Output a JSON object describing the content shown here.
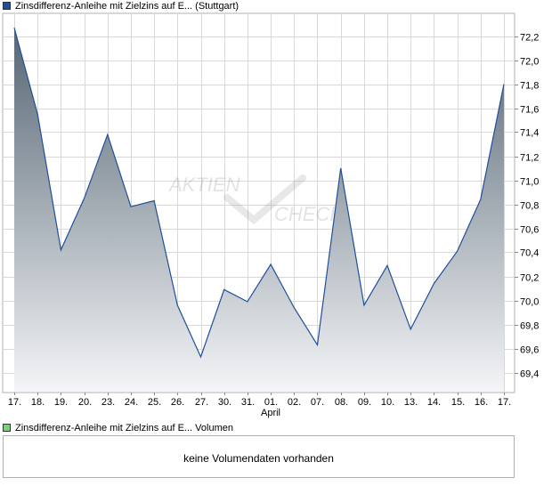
{
  "chart_data": {
    "type": "area",
    "legend": {
      "label": "Zinsdifferenz-Anleihe mit Zielzins auf E... (Stuttgart)",
      "color": "#1f4f9a"
    },
    "categories": [
      "17.",
      "18.",
      "19.",
      "20.",
      "23.",
      "24.",
      "25.",
      "26.",
      "27.",
      "30.",
      "31.",
      "01.",
      "02.",
      "07.",
      "08.",
      "09.",
      "10.",
      "13.",
      "14.",
      "15.",
      "16.",
      "17."
    ],
    "month_label": {
      "text": "April",
      "under_index": 11
    },
    "values": [
      72.27,
      71.55,
      70.42,
      70.85,
      71.38,
      70.78,
      70.83,
      69.96,
      69.53,
      70.09,
      69.99,
      70.3,
      69.94,
      69.63,
      71.1,
      69.96,
      70.29,
      69.76,
      70.14,
      70.41,
      70.84,
      71.8
    ],
    "ylim": [
      69.2,
      72.4
    ],
    "yticks": [
      69.4,
      69.6,
      69.8,
      70.0,
      70.2,
      70.4,
      70.6,
      70.8,
      71.0,
      71.2,
      71.4,
      71.6,
      71.8,
      72.0,
      72.2
    ],
    "ytick_labels": [
      "69,4",
      "69,6",
      "69,8",
      "70,0",
      "70,2",
      "70,4",
      "70,6",
      "70,8",
      "71,0",
      "71,2",
      "71,4",
      "71,6",
      "71,8",
      "72,0",
      "72,2"
    ],
    "grid": true,
    "line_color": "#1f4f9a",
    "fill_top_color": "#566674",
    "fill_bottom_color": "#f4f5f7"
  },
  "watermark": {
    "line1": "AKTIEN",
    "line2": "CHECK"
  },
  "volume_panel": {
    "legend_label": "Zinsdifferenz-Anleihe mit Zielzins auf E... Volumen",
    "legend_color": "#7ccf7c",
    "message": "keine Volumendaten vorhanden"
  }
}
